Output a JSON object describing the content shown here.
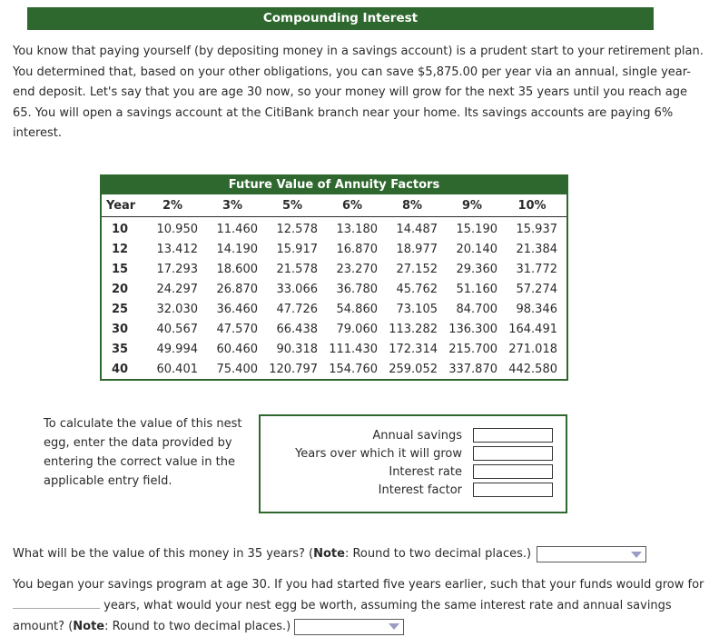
{
  "theme": {
    "green": "#2f682f",
    "dropdown_arrow": "#9b9bc4"
  },
  "header": {
    "title": "Compounding Interest"
  },
  "intro": "You know that paying yourself (by depositing money in a savings account) is a prudent start to your retirement plan. You determined that, based on your other obligations, you can save $5,875.00 per year via an annual, single year-end deposit. Let's say that you are age 30 now, so your money will grow for the next 35 years until you reach age 65. You will open a savings account at the CitiBank branch near your home. Its savings accounts are paying 6% interest.",
  "table": {
    "title": "Future Value of Annuity Factors",
    "columns": [
      "Year",
      "2%",
      "3%",
      "5%",
      "6%",
      "8%",
      "9%",
      "10%"
    ],
    "rows": [
      [
        "10",
        "10.950",
        "11.460",
        "12.578",
        "13.180",
        "14.487",
        "15.190",
        "15.937"
      ],
      [
        "12",
        "13.412",
        "14.190",
        "15.917",
        "16.870",
        "18.977",
        "20.140",
        "21.384"
      ],
      [
        "15",
        "17.293",
        "18.600",
        "21.578",
        "23.270",
        "27.152",
        "29.360",
        "31.772"
      ],
      [
        "20",
        "24.297",
        "26.870",
        "33.066",
        "36.780",
        "45.762",
        "51.160",
        "57.274"
      ],
      [
        "25",
        "32.030",
        "36.460",
        "47.726",
        "54.860",
        "73.105",
        "84.700",
        "98.346"
      ],
      [
        "30",
        "40.567",
        "47.570",
        "66.438",
        "79.060",
        "113.282",
        "136.300",
        "164.491"
      ],
      [
        "35",
        "49.994",
        "60.460",
        "90.318",
        "111.430",
        "172.314",
        "215.700",
        "271.018"
      ],
      [
        "40",
        "60.401",
        "75.400",
        "120.797",
        "154.760",
        "259.052",
        "337.870",
        "442.580"
      ]
    ]
  },
  "entry": {
    "instructions": "To calculate the value of this nest egg, enter the data provided by entering the correct value in the applicable entry field.",
    "fields": [
      {
        "name": "annual-savings",
        "label": "Annual savings",
        "value": ""
      },
      {
        "name": "years-grow",
        "label": "Years over which it will grow",
        "value": ""
      },
      {
        "name": "interest-rate",
        "label": "Interest rate",
        "value": ""
      },
      {
        "name": "interest-factor",
        "label": "Interest factor",
        "value": ""
      }
    ]
  },
  "q1": {
    "text_before": "What will be the value of this money in 35 years? (",
    "note_label": "Note",
    "text_after": ": Round to two decimal places.)",
    "dropdown_value": ""
  },
  "q2": {
    "text_part1": "You began your savings program at age 30. If you had started five years earlier, such that your funds would grow for ",
    "text_part2": " years, what would your nest egg be worth, assuming the same interest rate and annual savings amount? (",
    "note_label": "Note",
    "text_after": ": Round to two decimal places.) ",
    "dropdown_value": ""
  }
}
